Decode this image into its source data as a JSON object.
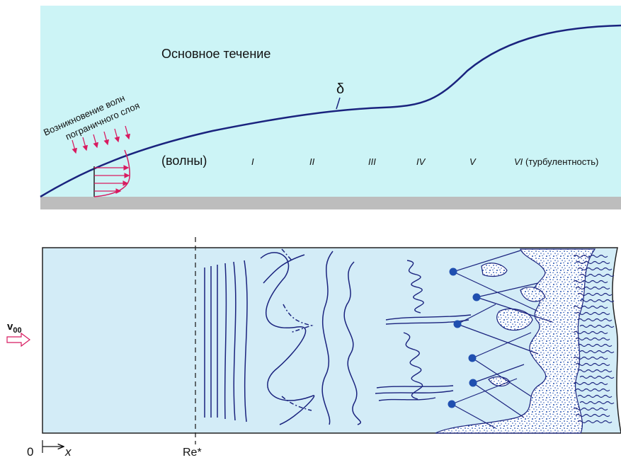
{
  "top": {
    "main_flow": "Основное течение",
    "delta": "δ",
    "wave_origin_line1": "Возникновение волн",
    "wave_origin_line2": "пограничного слоя",
    "stages": [
      {
        "numeral": "(волны)",
        "note": ""
      },
      {
        "numeral": "I",
        "note": ""
      },
      {
        "numeral": "II",
        "note": ""
      },
      {
        "numeral": "III",
        "note": ""
      },
      {
        "numeral": "IV",
        "note": ""
      },
      {
        "numeral": "V",
        "note": ""
      },
      {
        "numeral": "VI",
        "note": "(турбулентность)"
      }
    ]
  },
  "bottom": {
    "velocity_main": "v",
    "velocity_sub": "00",
    "origin": "0",
    "axis": "x",
    "critical": "Re*"
  },
  "colors": {
    "flow_fill": "#ccf4f6",
    "channel_fill": "#d3ecf7",
    "wall": "#bdbdbd",
    "curve": "#1a237e",
    "arrow": "#d81b60",
    "spot": "#1f4fb0"
  }
}
